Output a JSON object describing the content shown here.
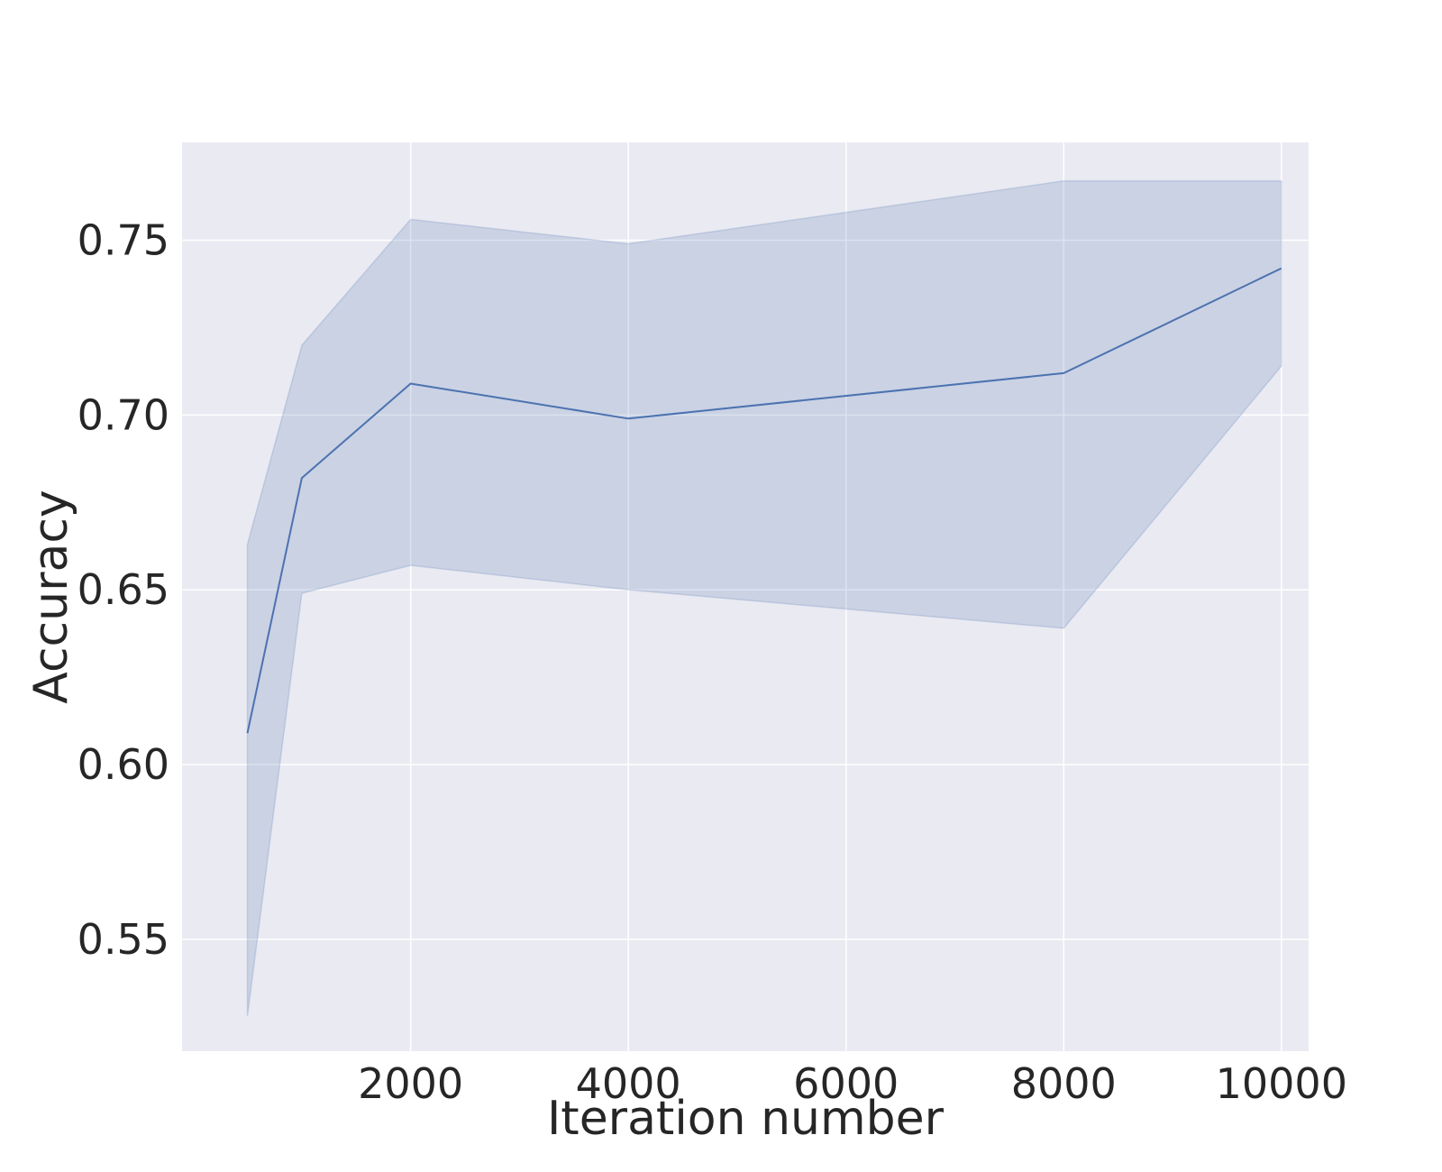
{
  "chart_data": {
    "type": "line",
    "title": "",
    "xlabel": "Iteration number",
    "ylabel": "Accuracy",
    "x": [
      500,
      1000,
      2000,
      4000,
      8000,
      10000
    ],
    "series": [
      {
        "values": [
          0.609,
          0.682,
          0.709,
          0.699,
          0.712,
          0.742
        ],
        "ci_lower": [
          0.528,
          0.649,
          0.657,
          0.65,
          0.639,
          0.714
        ],
        "ci_upper": [
          0.663,
          0.72,
          0.756,
          0.749,
          0.767,
          0.767
        ],
        "color": "#4c72b0"
      }
    ],
    "xlim": [
      -100,
      10250
    ],
    "ylim": [
      0.518,
      0.778
    ],
    "xticks": [
      2000,
      4000,
      6000,
      8000,
      10000
    ],
    "xtick_labels": [
      "2000",
      "4000",
      "6000",
      "8000",
      "10000"
    ],
    "yticks": [
      0.55,
      0.6,
      0.65,
      0.7,
      0.75
    ],
    "ytick_labels": [
      "0.55",
      "0.60",
      "0.65",
      "0.70",
      "0.75"
    ],
    "grid": true,
    "background": "#eaeaf2",
    "grid_color": "#ffffff",
    "band_color": "#4c72b0"
  }
}
